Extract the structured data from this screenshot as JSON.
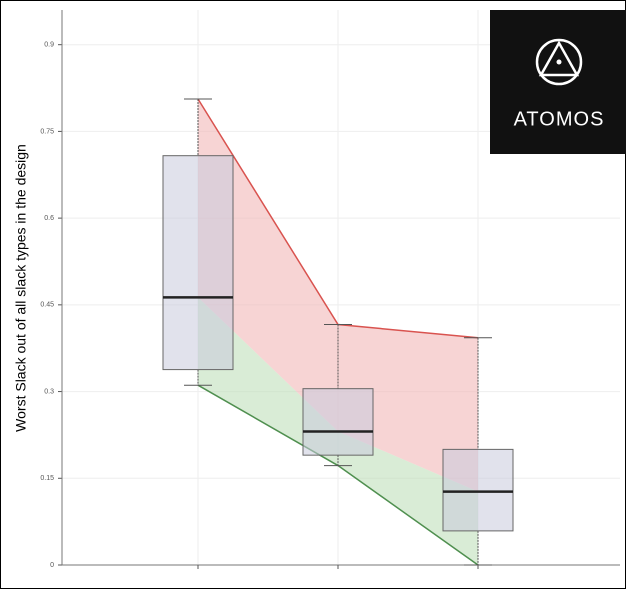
{
  "chart_data": {
    "type": "box",
    "y_label": "Worst Slack out of all slack types in the design",
    "categories": [
      null,
      null,
      null
    ],
    "boxes": [
      {
        "whislo": 0.311,
        "q1": 0.338,
        "med": 0.463,
        "q3": 0.708,
        "whishi": 0.806
      },
      {
        "whislo": 0.172,
        "q1": 0.19,
        "med": 0.231,
        "q3": 0.305,
        "whishi": 0.416
      },
      {
        "whislo": 0,
        "q1": 0.059,
        "med": 0.127,
        "q3": 0.2,
        "whishi": 0.393
      }
    ],
    "box_color": "#c8cbdd",
    "upper_band_color": "#f2b8b8",
    "upper_line_color": "#d9534f",
    "lower_band_color": "#bfe0bb",
    "lower_line_color": "#4f8f4f",
    "ylim": [
      0,
      0.96
    ],
    "yticks": [
      0,
      0.15,
      0.3,
      0.45,
      0.6,
      0.75,
      0.9
    ],
    "grid": true
  },
  "logo": {
    "text": "ATOMOS"
  }
}
